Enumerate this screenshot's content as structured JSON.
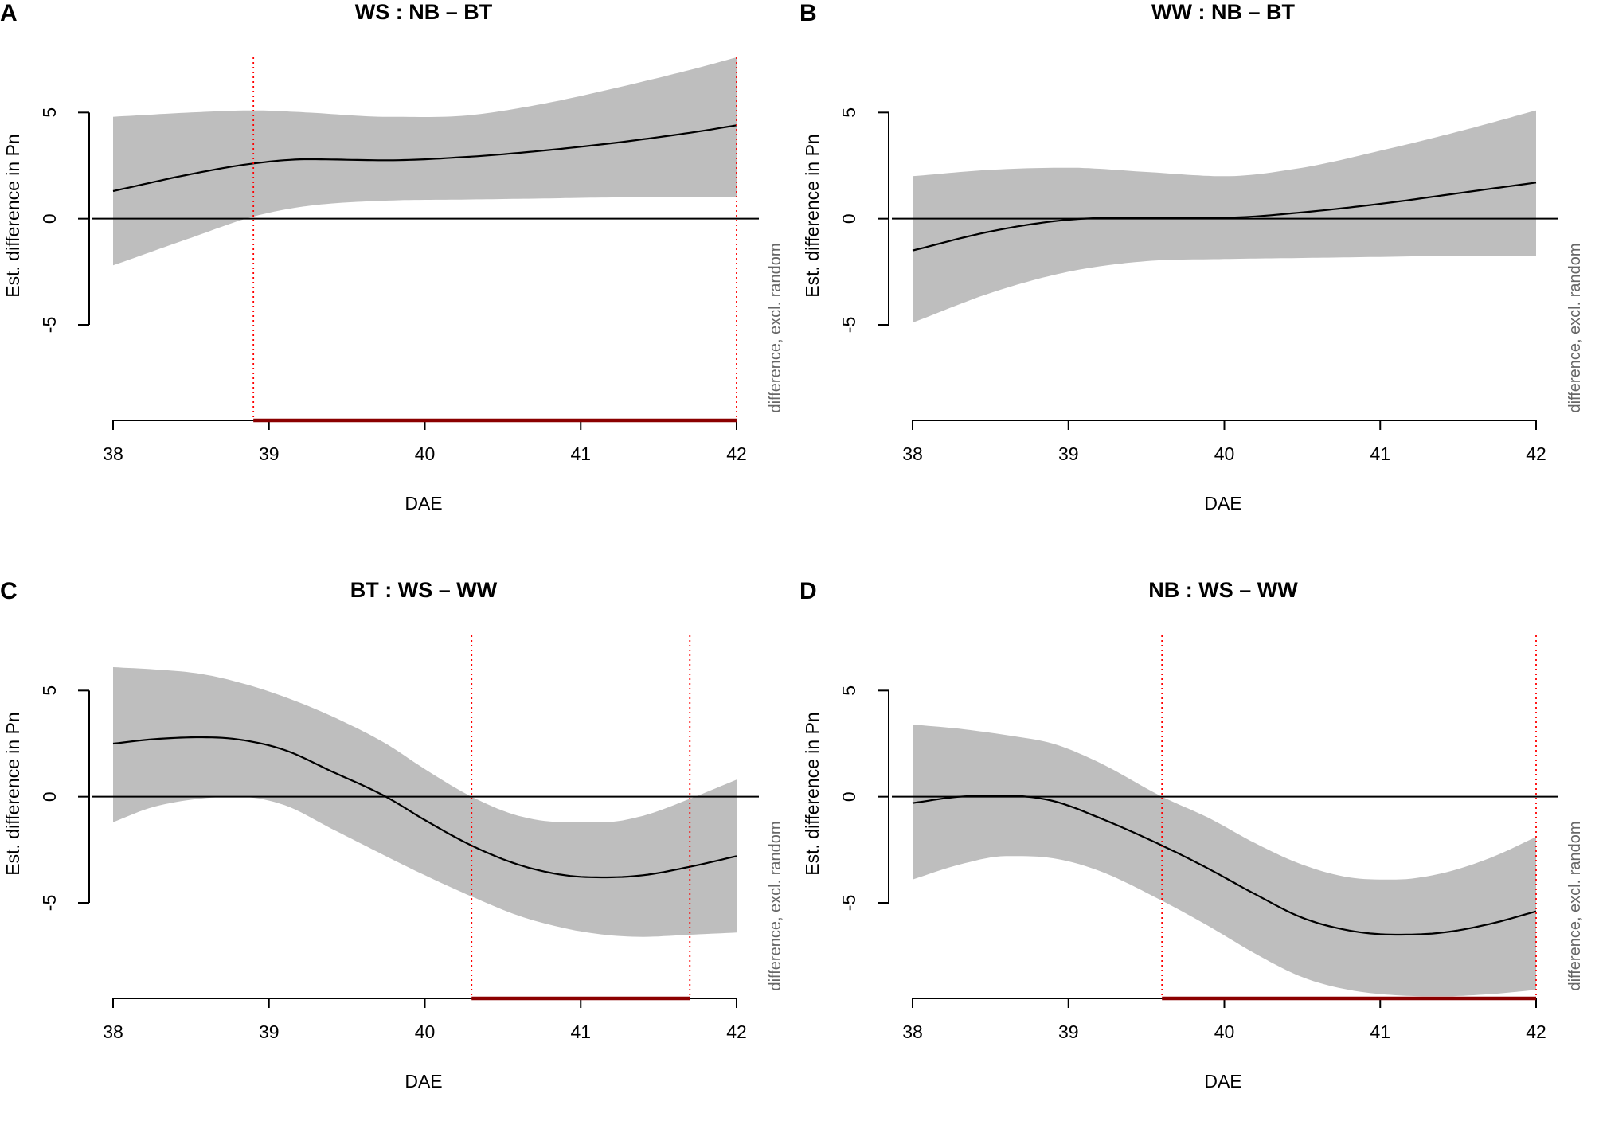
{
  "figure": {
    "colors": {
      "band": "#bebebe",
      "line": "#000000",
      "marker": "#ff0000",
      "significant_bar": "#8b0000"
    }
  },
  "chart_data": [
    {
      "panel": "A",
      "type": "line",
      "title": "WS : NB – BT",
      "xlabel": "DAE",
      "ylabel": "Est. difference in Pn",
      "side_label": "difference, excl. random",
      "xlim": [
        38,
        42
      ],
      "ylim": [
        -9.5,
        7.6
      ],
      "x_ticks": [
        "38",
        "39",
        "40",
        "41",
        "42"
      ],
      "y_ticks": [
        "-5",
        "0",
        "5"
      ],
      "zero_line": true,
      "x": [
        38,
        38.5,
        38.9,
        39.25,
        39.75,
        40.25,
        40.75,
        41.25,
        41.75,
        42
      ],
      "fit": [
        1.3,
        2.1,
        2.6,
        2.8,
        2.75,
        2.9,
        3.2,
        3.6,
        4.1,
        4.4
      ],
      "lower": [
        -2.2,
        -0.9,
        0.1,
        0.6,
        0.85,
        0.9,
        0.95,
        1.0,
        1.0,
        1.0
      ],
      "upper": [
        4.8,
        5.0,
        5.1,
        5.0,
        4.8,
        4.85,
        5.4,
        6.2,
        7.1,
        7.6
      ],
      "significance_markers": [
        38.9,
        42
      ],
      "significant_interval": [
        38.9,
        42
      ]
    },
    {
      "panel": "B",
      "type": "line",
      "title": "WW : NB – BT",
      "xlabel": "DAE",
      "ylabel": "Est. difference in Pn",
      "side_label": "difference, excl. random",
      "xlim": [
        38,
        42
      ],
      "ylim": [
        -9.5,
        7.6
      ],
      "x_ticks": [
        "38",
        "39",
        "40",
        "41",
        "42"
      ],
      "y_ticks": [
        "-5",
        "0",
        "5"
      ],
      "zero_line": true,
      "x": [
        38,
        38.5,
        39,
        39.5,
        40,
        40.5,
        41,
        41.5,
        42
      ],
      "fit": [
        -1.5,
        -0.6,
        -0.05,
        0.05,
        0.05,
        0.3,
        0.7,
        1.2,
        1.7
      ],
      "lower": [
        -4.9,
        -3.5,
        -2.5,
        -2.0,
        -1.9,
        -1.85,
        -1.8,
        -1.75,
        -1.75
      ],
      "upper": [
        2.0,
        2.3,
        2.4,
        2.2,
        2.0,
        2.4,
        3.2,
        4.1,
        5.1
      ],
      "significance_markers": [],
      "significant_interval": null
    },
    {
      "panel": "C",
      "type": "line",
      "title": "BT : WS – WW",
      "xlabel": "DAE",
      "ylabel": "Est. difference in Pn",
      "side_label": "difference, excl. random",
      "xlim": [
        38,
        42
      ],
      "ylim": [
        -9.5,
        7.6
      ],
      "x_ticks": [
        "38",
        "39",
        "40",
        "41",
        "42"
      ],
      "y_ticks": [
        "-5",
        "0",
        "5"
      ],
      "zero_line": true,
      "x": [
        38,
        38.25,
        38.55,
        38.8,
        39.1,
        39.4,
        39.75,
        40.0,
        40.3,
        40.6,
        40.9,
        41.15,
        41.4,
        41.7,
        42
      ],
      "fit": [
        2.5,
        2.7,
        2.8,
        2.7,
        2.2,
        1.2,
        0.0,
        -1.1,
        -2.3,
        -3.2,
        -3.7,
        -3.8,
        -3.7,
        -3.3,
        -2.8
      ],
      "lower": [
        -1.2,
        -0.5,
        -0.1,
        0.0,
        -0.4,
        -1.5,
        -2.8,
        -3.7,
        -4.7,
        -5.6,
        -6.2,
        -6.5,
        -6.6,
        -6.5,
        -6.4
      ],
      "upper": [
        6.1,
        6.0,
        5.8,
        5.4,
        4.7,
        3.8,
        2.5,
        1.3,
        0.0,
        -0.9,
        -1.2,
        -1.2,
        -0.9,
        -0.1,
        0.8
      ],
      "significance_markers": [
        40.3,
        41.7
      ],
      "significant_interval": [
        40.3,
        41.7
      ]
    },
    {
      "panel": "D",
      "type": "line",
      "title": "NB : WS – WW",
      "xlabel": "DAE",
      "ylabel": "Est. difference in Pn",
      "side_label": "difference, excl. random",
      "xlim": [
        38,
        42
      ],
      "ylim": [
        -9.5,
        7.6
      ],
      "x_ticks": [
        "38",
        "39",
        "40",
        "41",
        "42"
      ],
      "y_ticks": [
        "-5",
        "0",
        "5"
      ],
      "zero_line": true,
      "x": [
        38,
        38.3,
        38.6,
        38.9,
        39.2,
        39.6,
        39.9,
        40.2,
        40.5,
        40.8,
        41.1,
        41.4,
        41.7,
        42
      ],
      "fit": [
        -0.3,
        0.0,
        0.05,
        -0.2,
        -1.0,
        -2.3,
        -3.4,
        -4.6,
        -5.7,
        -6.3,
        -6.5,
        -6.4,
        -6.0,
        -5.4
      ],
      "lower": [
        -3.9,
        -3.2,
        -2.8,
        -2.9,
        -3.5,
        -4.9,
        -6.1,
        -7.4,
        -8.5,
        -9.1,
        -9.35,
        -9.4,
        -9.3,
        -9.1
      ],
      "upper": [
        3.4,
        3.2,
        2.9,
        2.5,
        1.6,
        0.0,
        -1.0,
        -2.2,
        -3.2,
        -3.8,
        -3.9,
        -3.6,
        -2.9,
        -1.9
      ],
      "significance_markers": [
        39.6,
        42
      ],
      "significant_interval": [
        39.6,
        42
      ]
    }
  ]
}
